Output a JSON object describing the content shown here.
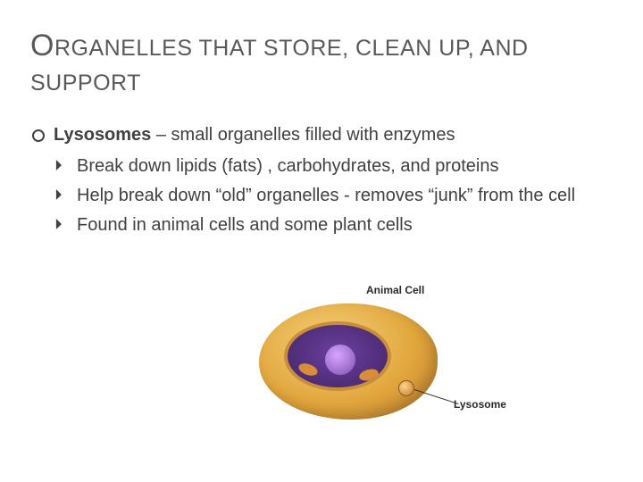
{
  "title_html": "Organelles that store, clean up, and support",
  "bullets": {
    "main": {
      "label": "Lysosomes",
      "rest": " – small organelles filled with enzymes"
    },
    "sub1": "Break down lipids (fats) , carbohydrates, and proteins",
    "sub2": "Help break down “old” organelles  - removes “junk” from the cell",
    "sub3": "Found in animal cells and some plant cells"
  },
  "image": {
    "label_top": "Animal Cell",
    "label_lysosome": "Lysosome"
  },
  "colors": {
    "text": "#5a5a5a",
    "body_text": "#404040",
    "cell_light": "#f3d27a",
    "cell_dark": "#b6782a",
    "interior": "#4a2a70",
    "nucleus": "#7d4fb0"
  }
}
